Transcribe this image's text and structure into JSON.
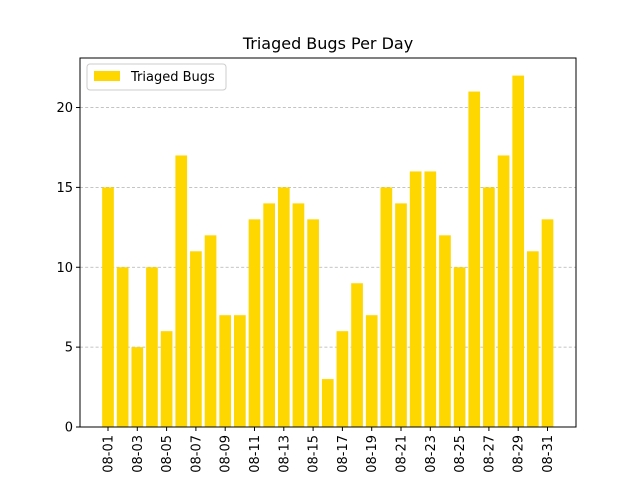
{
  "chart_data": {
    "type": "bar",
    "title": "Triaged Bugs Per Day",
    "xlabel": "",
    "ylabel": "",
    "categories": [
      "08-01",
      "08-02",
      "08-03",
      "08-04",
      "08-05",
      "08-06",
      "08-07",
      "08-08",
      "08-09",
      "08-10",
      "08-11",
      "08-12",
      "08-13",
      "08-14",
      "08-15",
      "08-16",
      "08-17",
      "08-18",
      "08-19",
      "08-20",
      "08-21",
      "08-22",
      "08-23",
      "08-24",
      "08-25",
      "08-26",
      "08-27",
      "08-28",
      "08-29",
      "08-30",
      "08-31"
    ],
    "tick_labels": [
      "08-01",
      "08-03",
      "08-05",
      "08-07",
      "08-09",
      "08-11",
      "08-13",
      "08-15",
      "08-17",
      "08-19",
      "08-21",
      "08-23",
      "08-25",
      "08-27",
      "08-29",
      "08-31"
    ],
    "series": [
      {
        "name": "Triaged Bugs",
        "color": "#FFD700",
        "values": [
          15,
          10,
          5,
          10,
          6,
          17,
          11,
          12,
          7,
          7,
          13,
          14,
          15,
          14,
          13,
          3,
          6,
          9,
          7,
          15,
          14,
          16,
          16,
          12,
          10,
          21,
          15,
          17,
          22,
          11,
          13
        ]
      }
    ],
    "ylim": [
      0,
      23.1
    ],
    "yticks": [
      0,
      5,
      10,
      15,
      20
    ],
    "grid": "y-dashed",
    "legend_position": "top-left"
  }
}
